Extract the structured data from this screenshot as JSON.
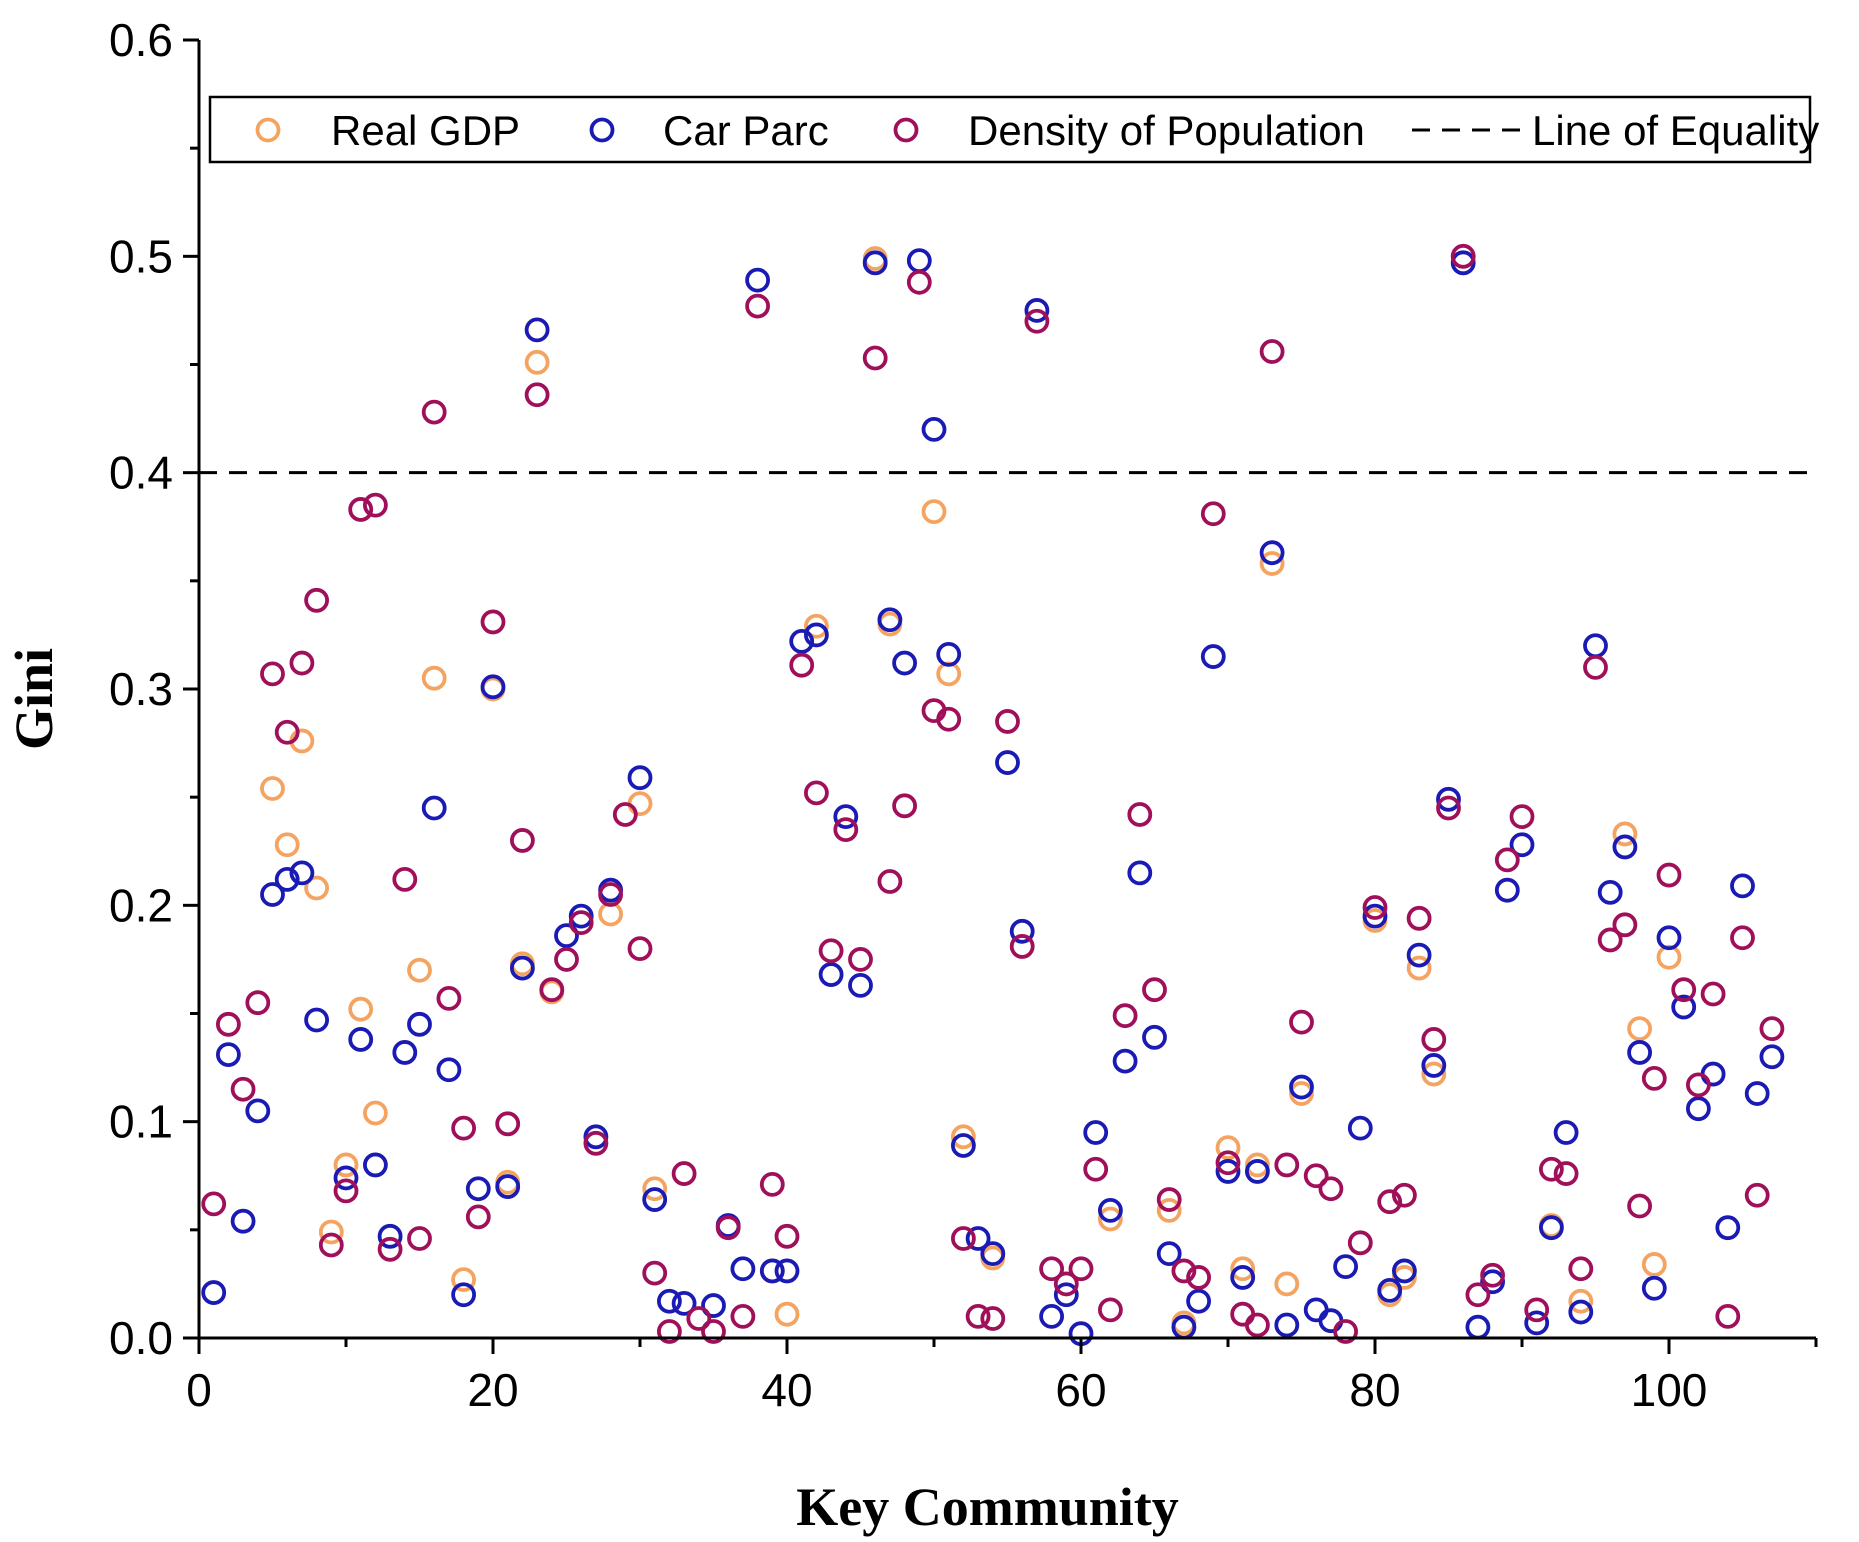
{
  "chart_data": {
    "type": "scatter",
    "xlabel": "Key Community",
    "ylabel": "Gini",
    "xlim": [
      0,
      110
    ],
    "ylim": [
      0,
      0.6
    ],
    "x_ticks": [
      "0",
      "20",
      "40",
      "60",
      "80",
      "100"
    ],
    "y_ticks": [
      "0.0",
      "0.1",
      "0.2",
      "0.3",
      "0.4",
      "0.5",
      "0.6"
    ],
    "grid": false,
    "legend_position": "top",
    "reference_line": {
      "name": "Line of Equality",
      "y": 0.4,
      "color": "#000000"
    },
    "series": [
      {
        "name": "Real GDP",
        "color": "#F4A460",
        "points": [
          [
            5,
            0.254
          ],
          [
            6,
            0.228
          ],
          [
            7,
            0.276
          ],
          [
            8,
            0.208
          ],
          [
            9,
            0.049
          ],
          [
            10,
            0.08
          ],
          [
            11,
            0.152
          ],
          [
            12,
            0.104
          ],
          [
            15,
            0.17
          ],
          [
            16,
            0.305
          ],
          [
            18,
            0.027
          ],
          [
            20,
            0.3
          ],
          [
            21,
            0.072
          ],
          [
            22,
            0.173
          ],
          [
            23,
            0.451
          ],
          [
            24,
            0.16
          ],
          [
            28,
            0.196
          ],
          [
            30,
            0.247
          ],
          [
            31,
            0.069
          ],
          [
            39,
            0.031
          ],
          [
            40,
            0.011
          ],
          [
            42,
            0.329
          ],
          [
            46,
            0.499
          ],
          [
            47,
            0.33
          ],
          [
            50,
            0.382
          ],
          [
            51,
            0.307
          ],
          [
            52,
            0.093
          ],
          [
            54,
            0.037
          ],
          [
            62,
            0.055
          ],
          [
            66,
            0.059
          ],
          [
            67,
            0.007
          ],
          [
            70,
            0.088
          ],
          [
            71,
            0.032
          ],
          [
            72,
            0.08
          ],
          [
            73,
            0.358
          ],
          [
            74,
            0.025
          ],
          [
            75,
            0.113
          ],
          [
            80,
            0.193
          ],
          [
            81,
            0.02
          ],
          [
            82,
            0.028
          ],
          [
            83,
            0.171
          ],
          [
            84,
            0.122
          ],
          [
            92,
            0.052
          ],
          [
            94,
            0.017
          ],
          [
            97,
            0.233
          ],
          [
            98,
            0.143
          ],
          [
            99,
            0.034
          ],
          [
            100,
            0.176
          ]
        ]
      },
      {
        "name": "Car Parc",
        "color": "#1A1AB4",
        "points": [
          [
            1,
            0.021
          ],
          [
            2,
            0.131
          ],
          [
            3,
            0.054
          ],
          [
            4,
            0.105
          ],
          [
            5,
            0.205
          ],
          [
            6,
            0.212
          ],
          [
            7,
            0.215
          ],
          [
            8,
            0.147
          ],
          [
            10,
            0.074
          ],
          [
            11,
            0.138
          ],
          [
            12,
            0.08
          ],
          [
            13,
            0.047
          ],
          [
            14,
            0.132
          ],
          [
            15,
            0.145
          ],
          [
            16,
            0.245
          ],
          [
            17,
            0.124
          ],
          [
            18,
            0.02
          ],
          [
            19,
            0.069
          ],
          [
            20,
            0.301
          ],
          [
            21,
            0.07
          ],
          [
            22,
            0.171
          ],
          [
            23,
            0.466
          ],
          [
            25,
            0.186
          ],
          [
            26,
            0.195
          ],
          [
            27,
            0.093
          ],
          [
            28,
            0.207
          ],
          [
            30,
            0.259
          ],
          [
            31,
            0.064
          ],
          [
            32,
            0.017
          ],
          [
            33,
            0.016
          ],
          [
            35,
            0.015
          ],
          [
            36,
            0.052
          ],
          [
            37,
            0.032
          ],
          [
            38,
            0.489
          ],
          [
            39,
            0.031
          ],
          [
            40,
            0.031
          ],
          [
            41,
            0.322
          ],
          [
            42,
            0.325
          ],
          [
            43,
            0.168
          ],
          [
            44,
            0.241
          ],
          [
            45,
            0.163
          ],
          [
            46,
            0.497
          ],
          [
            47,
            0.332
          ],
          [
            48,
            0.312
          ],
          [
            49,
            0.498
          ],
          [
            50,
            0.42
          ],
          [
            51,
            0.316
          ],
          [
            52,
            0.089
          ],
          [
            53,
            0.046
          ],
          [
            54,
            0.039
          ],
          [
            55,
            0.266
          ],
          [
            56,
            0.188
          ],
          [
            57,
            0.475
          ],
          [
            58,
            0.01
          ],
          [
            59,
            0.02
          ],
          [
            60,
            0.002
          ],
          [
            61,
            0.095
          ],
          [
            62,
            0.059
          ],
          [
            63,
            0.128
          ],
          [
            64,
            0.215
          ],
          [
            65,
            0.139
          ],
          [
            66,
            0.039
          ],
          [
            67,
            0.005
          ],
          [
            68,
            0.017
          ],
          [
            69,
            0.315
          ],
          [
            70,
            0.077
          ],
          [
            71,
            0.028
          ],
          [
            72,
            0.077
          ],
          [
            73,
            0.363
          ],
          [
            74,
            0.006
          ],
          [
            75,
            0.116
          ],
          [
            76,
            0.013
          ],
          [
            77,
            0.008
          ],
          [
            78,
            0.033
          ],
          [
            79,
            0.097
          ],
          [
            80,
            0.195
          ],
          [
            81,
            0.022
          ],
          [
            82,
            0.031
          ],
          [
            83,
            0.177
          ],
          [
            84,
            0.126
          ],
          [
            85,
            0.249
          ],
          [
            86,
            0.497
          ],
          [
            87,
            0.005
          ],
          [
            88,
            0.026
          ],
          [
            89,
            0.207
          ],
          [
            90,
            0.228
          ],
          [
            91,
            0.007
          ],
          [
            92,
            0.051
          ],
          [
            93,
            0.095
          ],
          [
            94,
            0.012
          ],
          [
            95,
            0.32
          ],
          [
            96,
            0.206
          ],
          [
            97,
            0.227
          ],
          [
            98,
            0.132
          ],
          [
            99,
            0.023
          ],
          [
            100,
            0.185
          ],
          [
            101,
            0.153
          ],
          [
            102,
            0.106
          ],
          [
            103,
            0.122
          ],
          [
            104,
            0.051
          ],
          [
            105,
            0.209
          ],
          [
            106,
            0.113
          ],
          [
            107,
            0.13
          ]
        ]
      },
      {
        "name": "Density of Population",
        "color": "#A0105A",
        "points": [
          [
            1,
            0.062
          ],
          [
            2,
            0.145
          ],
          [
            3,
            0.115
          ],
          [
            4,
            0.155
          ],
          [
            5,
            0.307
          ],
          [
            6,
            0.28
          ],
          [
            7,
            0.312
          ],
          [
            8,
            0.341
          ],
          [
            9,
            0.043
          ],
          [
            10,
            0.068
          ],
          [
            11,
            0.383
          ],
          [
            12,
            0.385
          ],
          [
            13,
            0.041
          ],
          [
            14,
            0.212
          ],
          [
            15,
            0.046
          ],
          [
            16,
            0.428
          ],
          [
            17,
            0.157
          ],
          [
            18,
            0.097
          ],
          [
            19,
            0.056
          ],
          [
            20,
            0.331
          ],
          [
            21,
            0.099
          ],
          [
            22,
            0.23
          ],
          [
            23,
            0.436
          ],
          [
            24,
            0.161
          ],
          [
            25,
            0.175
          ],
          [
            26,
            0.192
          ],
          [
            27,
            0.09
          ],
          [
            28,
            0.205
          ],
          [
            29,
            0.242
          ],
          [
            30,
            0.18
          ],
          [
            31,
            0.03
          ],
          [
            32,
            0.003
          ],
          [
            33,
            0.076
          ],
          [
            34,
            0.009
          ],
          [
            35,
            0.003
          ],
          [
            36,
            0.051
          ],
          [
            37,
            0.01
          ],
          [
            38,
            0.477
          ],
          [
            39,
            0.071
          ],
          [
            40,
            0.047
          ],
          [
            41,
            0.311
          ],
          [
            42,
            0.252
          ],
          [
            43,
            0.179
          ],
          [
            44,
            0.235
          ],
          [
            45,
            0.175
          ],
          [
            46,
            0.453
          ],
          [
            47,
            0.211
          ],
          [
            48,
            0.246
          ],
          [
            49,
            0.488
          ],
          [
            50,
            0.29
          ],
          [
            51,
            0.286
          ],
          [
            52,
            0.046
          ],
          [
            53,
            0.01
          ],
          [
            54,
            0.009
          ],
          [
            55,
            0.285
          ],
          [
            56,
            0.181
          ],
          [
            57,
            0.47
          ],
          [
            58,
            0.032
          ],
          [
            59,
            0.025
          ],
          [
            60,
            0.032
          ],
          [
            61,
            0.078
          ],
          [
            62,
            0.013
          ],
          [
            63,
            0.149
          ],
          [
            64,
            0.242
          ],
          [
            65,
            0.161
          ],
          [
            66,
            0.064
          ],
          [
            67,
            0.031
          ],
          [
            68,
            0.028
          ],
          [
            69,
            0.381
          ],
          [
            70,
            0.081
          ],
          [
            71,
            0.011
          ],
          [
            72,
            0.006
          ],
          [
            73,
            0.456
          ],
          [
            74,
            0.08
          ],
          [
            75,
            0.146
          ],
          [
            76,
            0.075
          ],
          [
            77,
            0.069
          ],
          [
            78,
            0.003
          ],
          [
            79,
            0.044
          ],
          [
            80,
            0.199
          ],
          [
            81,
            0.063
          ],
          [
            82,
            0.066
          ],
          [
            83,
            0.194
          ],
          [
            84,
            0.138
          ],
          [
            85,
            0.245
          ],
          [
            86,
            0.5
          ],
          [
            87,
            0.02
          ],
          [
            88,
            0.029
          ],
          [
            89,
            0.221
          ],
          [
            90,
            0.241
          ],
          [
            91,
            0.013
          ],
          [
            92,
            0.078
          ],
          [
            93,
            0.076
          ],
          [
            94,
            0.032
          ],
          [
            95,
            0.31
          ],
          [
            96,
            0.184
          ],
          [
            97,
            0.191
          ],
          [
            98,
            0.061
          ],
          [
            99,
            0.12
          ],
          [
            100,
            0.214
          ],
          [
            101,
            0.161
          ],
          [
            102,
            0.117
          ],
          [
            103,
            0.159
          ],
          [
            104,
            0.01
          ],
          [
            105,
            0.185
          ],
          [
            106,
            0.066
          ],
          [
            107,
            0.143
          ]
        ]
      }
    ]
  }
}
